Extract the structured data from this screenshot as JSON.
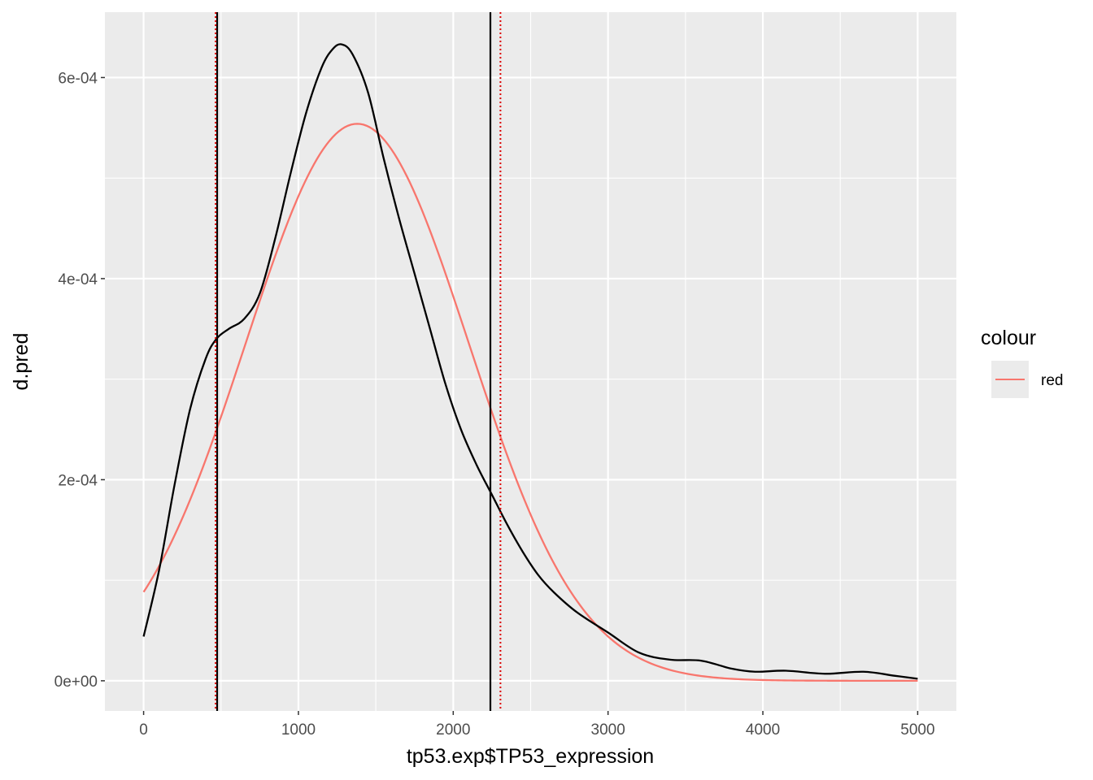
{
  "chart_data": {
    "type": "line",
    "title": "",
    "xlabel": "tp53.exp$TP53_expression",
    "ylabel": "d.pred",
    "xlim": [
      -250,
      5250
    ],
    "ylim": [
      -3e-05,
      0.000665
    ],
    "x_ticks": [
      0,
      1000,
      2000,
      3000,
      4000,
      5000
    ],
    "x_tick_labels": [
      "0",
      "1000",
      "2000",
      "3000",
      "4000",
      "5000"
    ],
    "y_ticks": [
      0,
      0.0002,
      0.0004,
      0.0006
    ],
    "y_tick_labels": [
      "0e+00",
      "2e-04",
      "4e-04",
      "6e-04"
    ],
    "grid": true,
    "legend": {
      "title": "colour",
      "placement": "right",
      "entries": [
        {
          "label": "red",
          "color": "#F8766D"
        }
      ]
    },
    "series": [
      {
        "color": "#000000",
        "x": [
          0,
          100,
          200,
          300,
          400,
          470,
          550,
          650,
          750,
          850,
          950,
          1050,
          1150,
          1220,
          1280,
          1350,
          1450,
          1550,
          1650,
          1750,
          1850,
          1950,
          2050,
          2150,
          2250,
          2350,
          2450,
          2550,
          2650,
          2800,
          3000,
          3200,
          3400,
          3600,
          3800,
          3950,
          4150,
          4400,
          4650,
          4850,
          5000
        ],
        "y": [
          4.4e-05,
          0.00011,
          0.000195,
          0.00027,
          0.00032,
          0.00034,
          0.00035,
          0.00036,
          0.000385,
          0.00044,
          0.000505,
          0.000565,
          0.00061,
          0.000628,
          0.000633,
          0.000623,
          0.000585,
          0.00052,
          0.00046,
          0.000405,
          0.00035,
          0.000295,
          0.00025,
          0.000215,
          0.000185,
          0.000155,
          0.000128,
          0.000105,
          8.8e-05,
          6.8e-05,
          4.8e-05,
          2.8e-05,
          2.1e-05,
          2e-05,
          1.2e-05,
          9e-06,
          1e-05,
          7e-06,
          9e-06,
          5e-06,
          2e-06
        ]
      },
      {
        "color": "#F8766D",
        "distribution": {
          "kind": "normal",
          "mean": 1380,
          "sd": 720,
          "peak": 0.000554
        },
        "x_range": [
          0,
          5000
        ]
      }
    ],
    "vlines": [
      {
        "x": 475,
        "color": "#000000",
        "style": "solid"
      },
      {
        "x": 2240,
        "color": "#000000",
        "style": "solid"
      },
      {
        "x": 465,
        "color": "#DD0000",
        "style": "dotted"
      },
      {
        "x": 2305,
        "color": "#DD0000",
        "style": "dotted"
      }
    ]
  }
}
